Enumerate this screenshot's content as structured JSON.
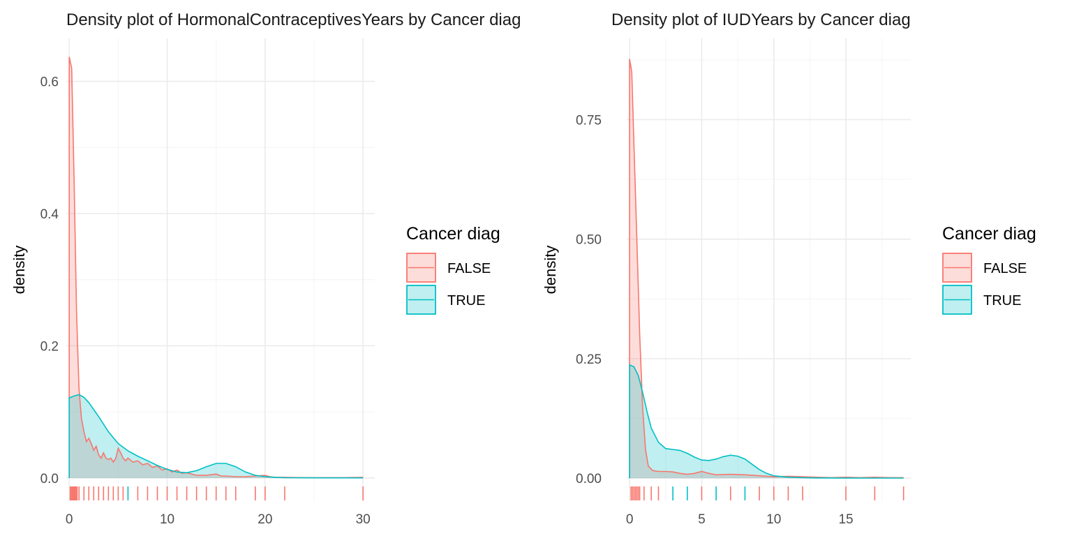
{
  "colors": {
    "FALSE": "#F8766D",
    "TRUE": "#00BFC4",
    "grid_major": "#ebebeb",
    "grid_minor": "#f4f4f4"
  },
  "legend": {
    "title": "Cancer diag",
    "items": [
      "FALSE",
      "TRUE"
    ]
  },
  "chart_data": [
    {
      "type": "area",
      "title": "Density plot of HormonalContraceptivesYears by Cancer diag",
      "xlabel": "",
      "ylabel": "density",
      "xlim": [
        -0.3,
        31.2
      ],
      "ylim": [
        -0.035,
        0.665
      ],
      "x_ticks": [
        0,
        10,
        20,
        30
      ],
      "y_ticks": [
        0.0,
        0.2,
        0.4,
        0.6
      ],
      "y_tick_labels": [
        "0.0",
        "0.2",
        "0.4",
        "0.6"
      ],
      "legend_position": "right",
      "grid": true,
      "series": [
        {
          "name": "FALSE",
          "x": [
            0,
            0.25,
            0.5,
            0.75,
            1,
            1.25,
            1.5,
            1.75,
            2,
            2.25,
            2.5,
            2.75,
            3,
            3.25,
            3.5,
            3.75,
            4,
            4.25,
            4.5,
            4.75,
            5,
            5.25,
            5.5,
            5.75,
            6,
            6.5,
            7,
            7.5,
            8,
            8.5,
            9,
            9.5,
            10,
            10.5,
            11,
            11.5,
            12,
            13,
            14,
            15,
            15.5,
            16,
            17,
            18,
            19,
            20,
            20.5,
            21,
            22,
            24,
            26,
            28,
            30
          ],
          "y": [
            0.637,
            0.62,
            0.45,
            0.25,
            0.135,
            0.09,
            0.07,
            0.055,
            0.06,
            0.052,
            0.042,
            0.048,
            0.035,
            0.03,
            0.038,
            0.03,
            0.028,
            0.03,
            0.024,
            0.03,
            0.045,
            0.038,
            0.03,
            0.026,
            0.03,
            0.024,
            0.026,
            0.02,
            0.022,
            0.016,
            0.018,
            0.012,
            0.014,
            0.009,
            0.012,
            0.007,
            0.008,
            0.004,
            0.004,
            0.006,
            0.003,
            0.003,
            0.002,
            0.002,
            0.003,
            0.004,
            0.002,
            0.001,
            0.001,
            0.0005,
            0.0005,
            0.0005,
            0.001
          ]
        },
        {
          "name": "TRUE",
          "x": [
            0,
            0.5,
            1,
            1.5,
            2,
            3,
            4,
            5,
            6,
            7,
            8,
            9,
            10,
            11,
            12,
            13,
            14,
            15,
            16,
            17,
            18,
            19,
            20,
            21,
            22,
            24,
            26,
            28,
            30
          ],
          "y": [
            0.121,
            0.124,
            0.126,
            0.122,
            0.114,
            0.093,
            0.07,
            0.052,
            0.041,
            0.033,
            0.026,
            0.019,
            0.013,
            0.009,
            0.008,
            0.011,
            0.017,
            0.022,
            0.022,
            0.017,
            0.009,
            0.004,
            0.002,
            0.001,
            0.0005,
            0.0003,
            0.0002,
            0.0002,
            0.0002
          ]
        }
      ],
      "rug": {
        "FALSE": [
          0.1,
          0.2,
          0.3,
          0.4,
          0.5,
          0.6,
          0.7,
          0.8,
          1,
          1.5,
          2,
          2.5,
          3,
          3.5,
          4,
          4.5,
          5,
          5.5,
          7,
          8,
          9,
          10,
          11,
          12,
          13,
          14,
          15,
          16,
          17,
          19,
          20,
          22,
          30
        ],
        "TRUE": [
          6
        ]
      }
    },
    {
      "type": "area",
      "title": "Density plot of IUDYears by Cancer diag",
      "xlabel": "",
      "ylabel": "density",
      "xlim": [
        -0.2,
        19.5
      ],
      "ylim": [
        -0.048,
        0.92
      ],
      "x_ticks": [
        0,
        5,
        10,
        15
      ],
      "y_ticks": [
        0.0,
        0.25,
        0.5,
        0.75
      ],
      "y_tick_labels": [
        "0.00",
        "0.25",
        "0.50",
        "0.75"
      ],
      "legend_position": "right",
      "grid": true,
      "series": [
        {
          "name": "FALSE",
          "x": [
            0,
            0.15,
            0.3,
            0.5,
            0.7,
            0.9,
            1.1,
            1.3,
            1.6,
            2,
            2.5,
            3,
            3.5,
            4,
            4.5,
            5,
            5.5,
            6,
            7,
            8,
            9,
            10,
            11,
            12,
            13,
            14,
            15,
            16,
            17,
            18,
            19
          ],
          "y": [
            0.877,
            0.85,
            0.7,
            0.5,
            0.3,
            0.15,
            0.06,
            0.025,
            0.016,
            0.014,
            0.014,
            0.013,
            0.01,
            0.008,
            0.01,
            0.014,
            0.01,
            0.007,
            0.008,
            0.007,
            0.005,
            0.003,
            0.004,
            0.003,
            0.002,
            0.001,
            0.002,
            0.001,
            0.002,
            0.001,
            0.001
          ]
        },
        {
          "name": "TRUE",
          "x": [
            0,
            0.3,
            0.6,
            0.9,
            1.2,
            1.5,
            2,
            2.5,
            3,
            3.5,
            4,
            4.5,
            5,
            5.5,
            6,
            6.5,
            7,
            7.5,
            8,
            8.5,
            9,
            9.5,
            10,
            11,
            12,
            13,
            15,
            17,
            19
          ],
          "y": [
            0.237,
            0.233,
            0.215,
            0.18,
            0.14,
            0.105,
            0.075,
            0.062,
            0.06,
            0.058,
            0.052,
            0.044,
            0.038,
            0.037,
            0.04,
            0.045,
            0.048,
            0.046,
            0.04,
            0.029,
            0.018,
            0.01,
            0.005,
            0.002,
            0.001,
            0.0005,
            0.0003,
            0.0002,
            0.0002
          ]
        }
      ],
      "rug": {
        "FALSE": [
          0.1,
          0.2,
          0.3,
          0.4,
          0.5,
          0.6,
          0.7,
          1,
          1.5,
          2,
          5,
          7,
          9,
          10,
          11,
          12,
          15,
          17,
          19
        ],
        "TRUE": [
          3,
          4,
          6,
          8
        ]
      }
    }
  ]
}
